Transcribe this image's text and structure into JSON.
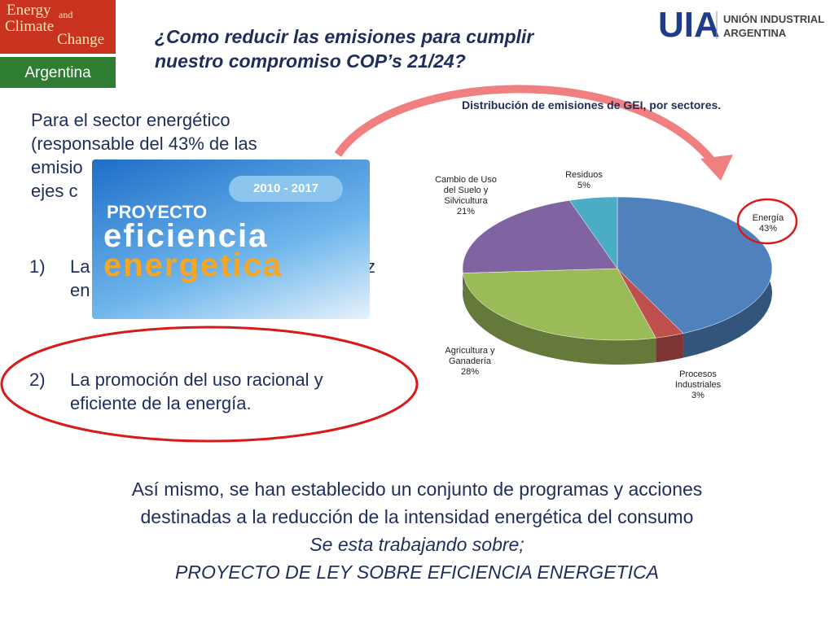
{
  "logo": {
    "words": [
      "Energy",
      "and",
      "Climate",
      "Change"
    ],
    "country": "Argentina"
  },
  "header": {
    "title_lines": [
      "¿Como reducir las emisiones para cumplir",
      "nuestro compromiso COP’s 21/24?"
    ]
  },
  "org_logo": {
    "mark": "UIA",
    "lines": [
      "UNIÓN INDUSTRIAL",
      "ARGENTINA"
    ]
  },
  "intro_lines": [
    "Para el sector energético",
    "(responsable del 43% de las",
    "emisio",
    "ejes c"
  ],
  "item1": {
    "number": "1)",
    "fragments": [
      "La",
      "z",
      "en"
    ]
  },
  "badge": {
    "years": "2010 - 2017",
    "lines": [
      "PROYECTO",
      "eficiencia",
      "energetica"
    ]
  },
  "item2": {
    "number": "2)",
    "lines": [
      "La promoción del uso racional y",
      "eficiente de la energía."
    ]
  },
  "footer": {
    "lines": [
      "Así mismo, se han establecido un conjunto de programas y acciones",
      "destinadas a la reducción de la intensidad energética del consumo",
      "Se esta trabajando sobre;",
      "PROYECTO DE LEY SOBRE EFICIENCIA ENERGETICA"
    ]
  },
  "chart_data": {
    "type": "pie",
    "title": "Distribución de emisiones de GEI, por sectores.",
    "categories": [
      "Energía",
      "Procesos Industriales",
      "Agricultura y Ganadería",
      "Cambio de Uso del Suelo y Silvicultura",
      "Residuos"
    ],
    "values": [
      43,
      3,
      28,
      21,
      5
    ],
    "value_labels": [
      "43%",
      "3%",
      "28%",
      "21%",
      "5%"
    ],
    "colors": [
      "#4f81bd",
      "#c0504d",
      "#9bbb59",
      "#8064a2",
      "#4bacc6"
    ]
  }
}
